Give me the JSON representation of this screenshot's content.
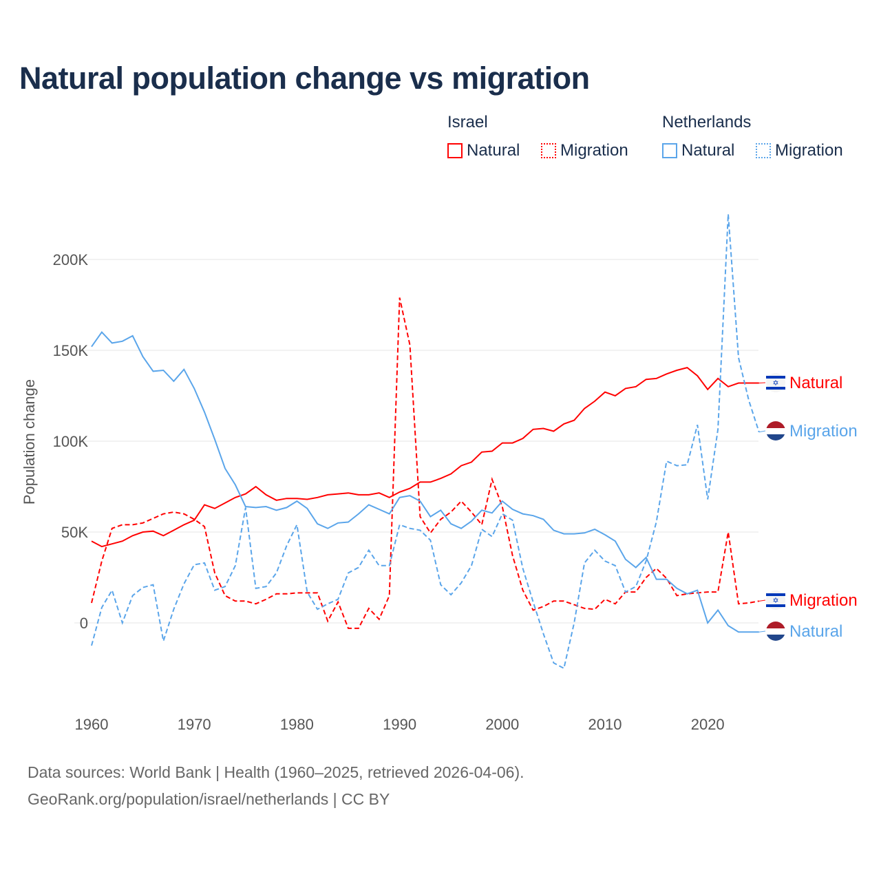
{
  "title": "Natural population change vs migration",
  "legend": {
    "groups": [
      {
        "name": "Israel",
        "items": [
          "Natural",
          "Migration"
        ]
      },
      {
        "name": "Netherlands",
        "items": [
          "Natural",
          "Migration"
        ]
      }
    ]
  },
  "footer": {
    "line1": "Data sources: World Bank | Health (1960–2025, retrieved 2026-04-06).",
    "line2": "GeoRank.org/population/israel/netherlands | CC BY"
  },
  "colors": {
    "israel": "#ff0000",
    "netherlands": "#5aa5ea",
    "title": "#1a2e4c"
  },
  "chart_data": {
    "type": "line",
    "title": "Natural population change vs migration",
    "xlabel": "",
    "ylabel": "Population change",
    "xlim": [
      1960,
      2025
    ],
    "ylim": [
      -35000,
      240000
    ],
    "x_ticks": [
      1960,
      1970,
      1980,
      1990,
      2000,
      2010,
      2020
    ],
    "x_tick_labels": [
      "1960",
      "1970",
      "1980",
      "1990",
      "2000",
      "2010",
      "2020"
    ],
    "y_ticks": [
      0,
      50000,
      100000,
      150000,
      200000
    ],
    "y_tick_labels": [
      "0",
      "50K",
      "100K",
      "150K",
      "200K"
    ],
    "grid": true,
    "legend_position": "top-right",
    "x_start": 1960,
    "units": "thousands",
    "series": [
      {
        "name": "Israel Natural",
        "end_label": "Natural",
        "country": "israel",
        "dash": false,
        "values": [
          45,
          42,
          43.5,
          45,
          48,
          50,
          50.5,
          48,
          51,
          54,
          56.5,
          65,
          63,
          66,
          69,
          71,
          75,
          70.5,
          67.5,
          68.5,
          68.5,
          68,
          69,
          70.5,
          71,
          71.5,
          70.5,
          70.5,
          71.5,
          69,
          72,
          74,
          77.5,
          77.5,
          79.5,
          82,
          86.5,
          88.5,
          94,
          94.5,
          99,
          99,
          101.5,
          106.5,
          107,
          105.5,
          109.5,
          111.5,
          118,
          122,
          127,
          125,
          129,
          130,
          134,
          134.5,
          137,
          139,
          140.5,
          136,
          128.5,
          134.5,
          130,
          132,
          132,
          132
        ]
      },
      {
        "name": "Israel Migration",
        "end_label": "Migration",
        "country": "israel",
        "dash": true,
        "values": [
          11,
          34,
          52,
          54,
          54,
          55,
          57.5,
          60,
          61,
          60,
          57,
          53,
          27.5,
          15,
          12,
          12,
          10.5,
          13,
          16,
          16,
          16.5,
          16.5,
          16.5,
          1,
          11.5,
          -3,
          -3,
          8,
          2,
          15,
          179,
          153,
          58.5,
          49.5,
          57,
          61,
          67,
          61,
          54,
          79,
          64,
          37,
          18,
          7,
          9,
          12,
          12,
          10,
          8,
          7.5,
          13,
          10.5,
          17,
          17,
          25,
          30,
          24.5,
          15,
          16,
          16.5,
          17,
          17,
          50,
          10.5,
          11,
          12
        ]
      },
      {
        "name": "Netherlands Natural",
        "end_label": "Natural",
        "country": "netherlands",
        "dash": false,
        "values": [
          152,
          160,
          154,
          155,
          158,
          146.5,
          138.5,
          139,
          133,
          139.5,
          129,
          116,
          101,
          85,
          76,
          64,
          63.5,
          64,
          62,
          63.5,
          67,
          63,
          54.5,
          52,
          55,
          55.5,
          60,
          65,
          62.5,
          60,
          69,
          70,
          67,
          58.5,
          62,
          54.5,
          52,
          56,
          62,
          60.5,
          67,
          62.5,
          60,
          59,
          57,
          51,
          49,
          49,
          49.5,
          51.5,
          48.5,
          45,
          35,
          30.5,
          36,
          24,
          24,
          19,
          16,
          18,
          0,
          7,
          -1.5,
          -5,
          -5,
          -5
        ]
      },
      {
        "name": "Netherlands Migration",
        "end_label": "Migration",
        "country": "netherlands",
        "dash": true,
        "values": [
          -12.5,
          8.5,
          18,
          0,
          15,
          19.5,
          21,
          -10,
          7.5,
          21.5,
          32,
          33,
          18,
          20,
          31.5,
          63.5,
          19,
          20,
          27.5,
          42.5,
          54,
          17,
          7.5,
          10.5,
          13,
          27.5,
          30.5,
          40,
          31.5,
          31.5,
          54,
          52,
          51,
          45.5,
          21,
          15.5,
          22,
          31.5,
          51.5,
          47.5,
          60,
          56.5,
          30,
          11.5,
          -6,
          -22,
          -25,
          0,
          33,
          40,
          34,
          31.5,
          17,
          20,
          34,
          55.5,
          89,
          86.5,
          87,
          109,
          68,
          106.5,
          225,
          146,
          122.5,
          105
        ]
      }
    ]
  }
}
